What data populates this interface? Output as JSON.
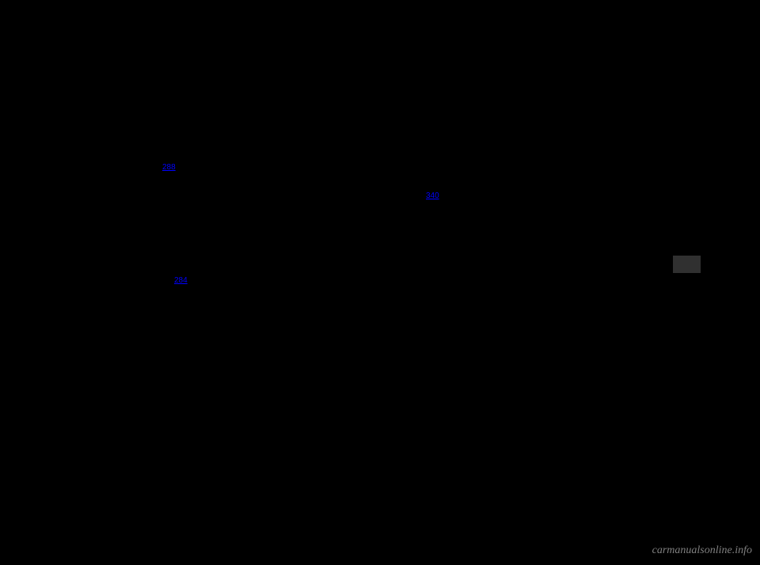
{
  "links": {
    "link1": "288",
    "link2": "340",
    "link3": "284"
  },
  "watermark": "carmanualsonline.info",
  "colors": {
    "background": "#000000",
    "link_color": "#0000ff",
    "marker_color": "#303030",
    "watermark_color": "#808080"
  }
}
